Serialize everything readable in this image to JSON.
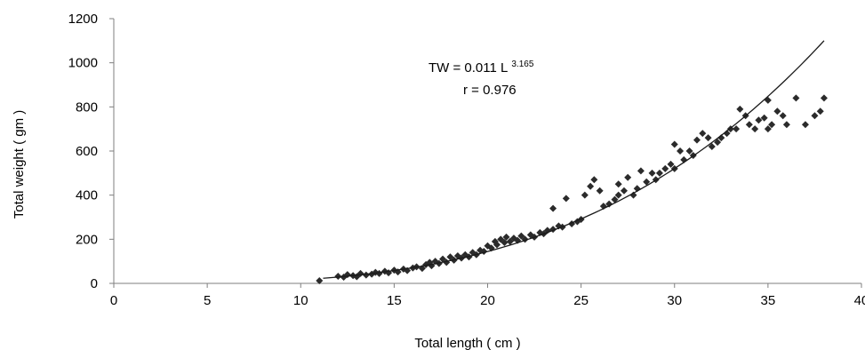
{
  "chart_data": {
    "type": "scatter",
    "title": "",
    "xlabel": "Total length ( cm )",
    "ylabel": "Total weight ( gm )",
    "xlim": [
      0,
      40
    ],
    "ylim": [
      0,
      1200
    ],
    "x_ticks": [
      "0",
      "5",
      "10",
      "15",
      "20",
      "25",
      "30",
      "35",
      "40"
    ],
    "y_ticks": [
      "0",
      "200",
      "400",
      "600",
      "800",
      "1000",
      "1200"
    ],
    "grid": false,
    "legend": "none",
    "marker": "diamond",
    "marker_color": "#2b2b2b",
    "equation": {
      "prefix": "TW = 0.011 L",
      "exponent": "3.165",
      "r_text": "r = 0.976"
    },
    "fit": {
      "a": 0.011,
      "b": 3.165,
      "x_from": 11.2,
      "x_to": 38
    },
    "series": [
      {
        "points": [
          [
            11.0,
            12
          ],
          [
            12.0,
            32
          ],
          [
            12.3,
            28
          ],
          [
            12.5,
            40
          ],
          [
            12.8,
            35
          ],
          [
            13.0,
            30
          ],
          [
            13.2,
            45
          ],
          [
            13.5,
            38
          ],
          [
            13.8,
            42
          ],
          [
            14.0,
            50
          ],
          [
            14.2,
            45
          ],
          [
            14.5,
            55
          ],
          [
            14.7,
            48
          ],
          [
            15.0,
            60
          ],
          [
            15.2,
            52
          ],
          [
            15.5,
            65
          ],
          [
            15.7,
            58
          ],
          [
            16.0,
            70
          ],
          [
            16.2,
            75
          ],
          [
            16.5,
            68
          ],
          [
            16.7,
            85
          ],
          [
            16.9,
            95
          ],
          [
            17.0,
            80
          ],
          [
            17.2,
            100
          ],
          [
            17.4,
            90
          ],
          [
            17.6,
            110
          ],
          [
            17.8,
            95
          ],
          [
            18.0,
            120
          ],
          [
            18.2,
            105
          ],
          [
            18.4,
            125
          ],
          [
            18.6,
            115
          ],
          [
            18.8,
            130
          ],
          [
            19.0,
            120
          ],
          [
            19.2,
            140
          ],
          [
            19.4,
            130
          ],
          [
            19.6,
            150
          ],
          [
            19.8,
            145
          ],
          [
            20.0,
            170
          ],
          [
            20.2,
            160
          ],
          [
            20.4,
            190
          ],
          [
            20.5,
            175
          ],
          [
            20.7,
            200
          ],
          [
            20.9,
            185
          ],
          [
            21.0,
            210
          ],
          [
            21.2,
            190
          ],
          [
            21.4,
            205
          ],
          [
            21.6,
            195
          ],
          [
            21.8,
            215
          ],
          [
            22.0,
            200
          ],
          [
            22.3,
            220
          ],
          [
            22.5,
            210
          ],
          [
            22.8,
            230
          ],
          [
            23.0,
            225
          ],
          [
            23.2,
            240
          ],
          [
            23.5,
            245
          ],
          [
            23.5,
            340
          ],
          [
            23.8,
            260
          ],
          [
            24.0,
            255
          ],
          [
            24.2,
            385
          ],
          [
            24.5,
            270
          ],
          [
            24.8,
            280
          ],
          [
            25.0,
            290
          ],
          [
            25.2,
            400
          ],
          [
            25.5,
            440
          ],
          [
            25.7,
            470
          ],
          [
            26.0,
            420
          ],
          [
            26.2,
            350
          ],
          [
            26.5,
            360
          ],
          [
            26.8,
            380
          ],
          [
            27.0,
            400
          ],
          [
            27.0,
            450
          ],
          [
            27.3,
            420
          ],
          [
            27.5,
            480
          ],
          [
            27.8,
            400
          ],
          [
            28.0,
            430
          ],
          [
            28.2,
            510
          ],
          [
            28.5,
            460
          ],
          [
            28.8,
            500
          ],
          [
            29.0,
            470
          ],
          [
            29.2,
            500
          ],
          [
            29.5,
            520
          ],
          [
            29.8,
            540
          ],
          [
            30.0,
            630
          ],
          [
            30.0,
            520
          ],
          [
            30.3,
            600
          ],
          [
            30.5,
            560
          ],
          [
            30.8,
            600
          ],
          [
            31.0,
            580
          ],
          [
            31.2,
            650
          ],
          [
            31.5,
            680
          ],
          [
            31.8,
            660
          ],
          [
            32.0,
            620
          ],
          [
            32.3,
            640
          ],
          [
            32.5,
            660
          ],
          [
            32.8,
            680
          ],
          [
            33.0,
            700
          ],
          [
            33.3,
            700
          ],
          [
            33.5,
            790
          ],
          [
            33.8,
            760
          ],
          [
            34.0,
            720
          ],
          [
            34.3,
            700
          ],
          [
            34.5,
            740
          ],
          [
            34.8,
            750
          ],
          [
            35.0,
            830
          ],
          [
            35.0,
            700
          ],
          [
            35.2,
            720
          ],
          [
            35.5,
            780
          ],
          [
            35.8,
            760
          ],
          [
            36.0,
            720
          ],
          [
            36.5,
            840
          ],
          [
            37.0,
            720
          ],
          [
            37.5,
            760
          ],
          [
            37.8,
            780
          ],
          [
            38.0,
            840
          ]
        ]
      }
    ]
  }
}
